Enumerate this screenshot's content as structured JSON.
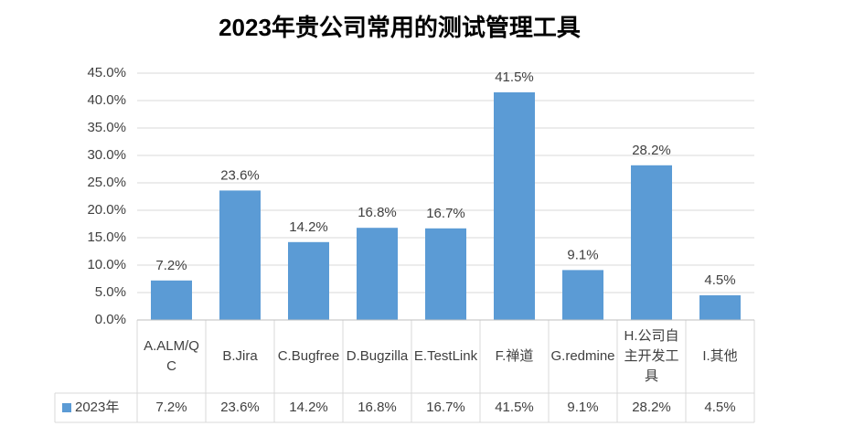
{
  "chart_data": {
    "type": "bar",
    "title": "2023年贵公司常用的测试管理工具",
    "categories": [
      "A.ALM/QC",
      "B.Jira",
      "C.Bugfree",
      "D.Bugzilla",
      "E.TestLink",
      "F.禅道",
      "G.redmine",
      "H.公司自主开发工具",
      "I.其他"
    ],
    "series": [
      {
        "name": "2023年",
        "color": "#5b9bd5",
        "values": [
          7.2,
          23.6,
          14.2,
          16.8,
          16.7,
          41.5,
          9.1,
          28.2,
          4.5
        ],
        "value_labels": [
          "7.2%",
          "23.6%",
          "14.2%",
          "16.8%",
          "16.7%",
          "41.5%",
          "9.1%",
          "28.2%",
          "4.5%"
        ]
      }
    ],
    "ylim": [
      0,
      45
    ],
    "yticks": [
      {
        "value": 0,
        "label": "0.0%"
      },
      {
        "value": 5,
        "label": "5.0%"
      },
      {
        "value": 10,
        "label": "10.0%"
      },
      {
        "value": 15,
        "label": "15.0%"
      },
      {
        "value": 20,
        "label": "20.0%"
      },
      {
        "value": 25,
        "label": "25.0%"
      },
      {
        "value": 30,
        "label": "30.0%"
      },
      {
        "value": 35,
        "label": "35.0%"
      },
      {
        "value": 40,
        "label": "40.0%"
      },
      {
        "value": 45,
        "label": "45.0%"
      }
    ],
    "grid": true,
    "data_table": true
  }
}
